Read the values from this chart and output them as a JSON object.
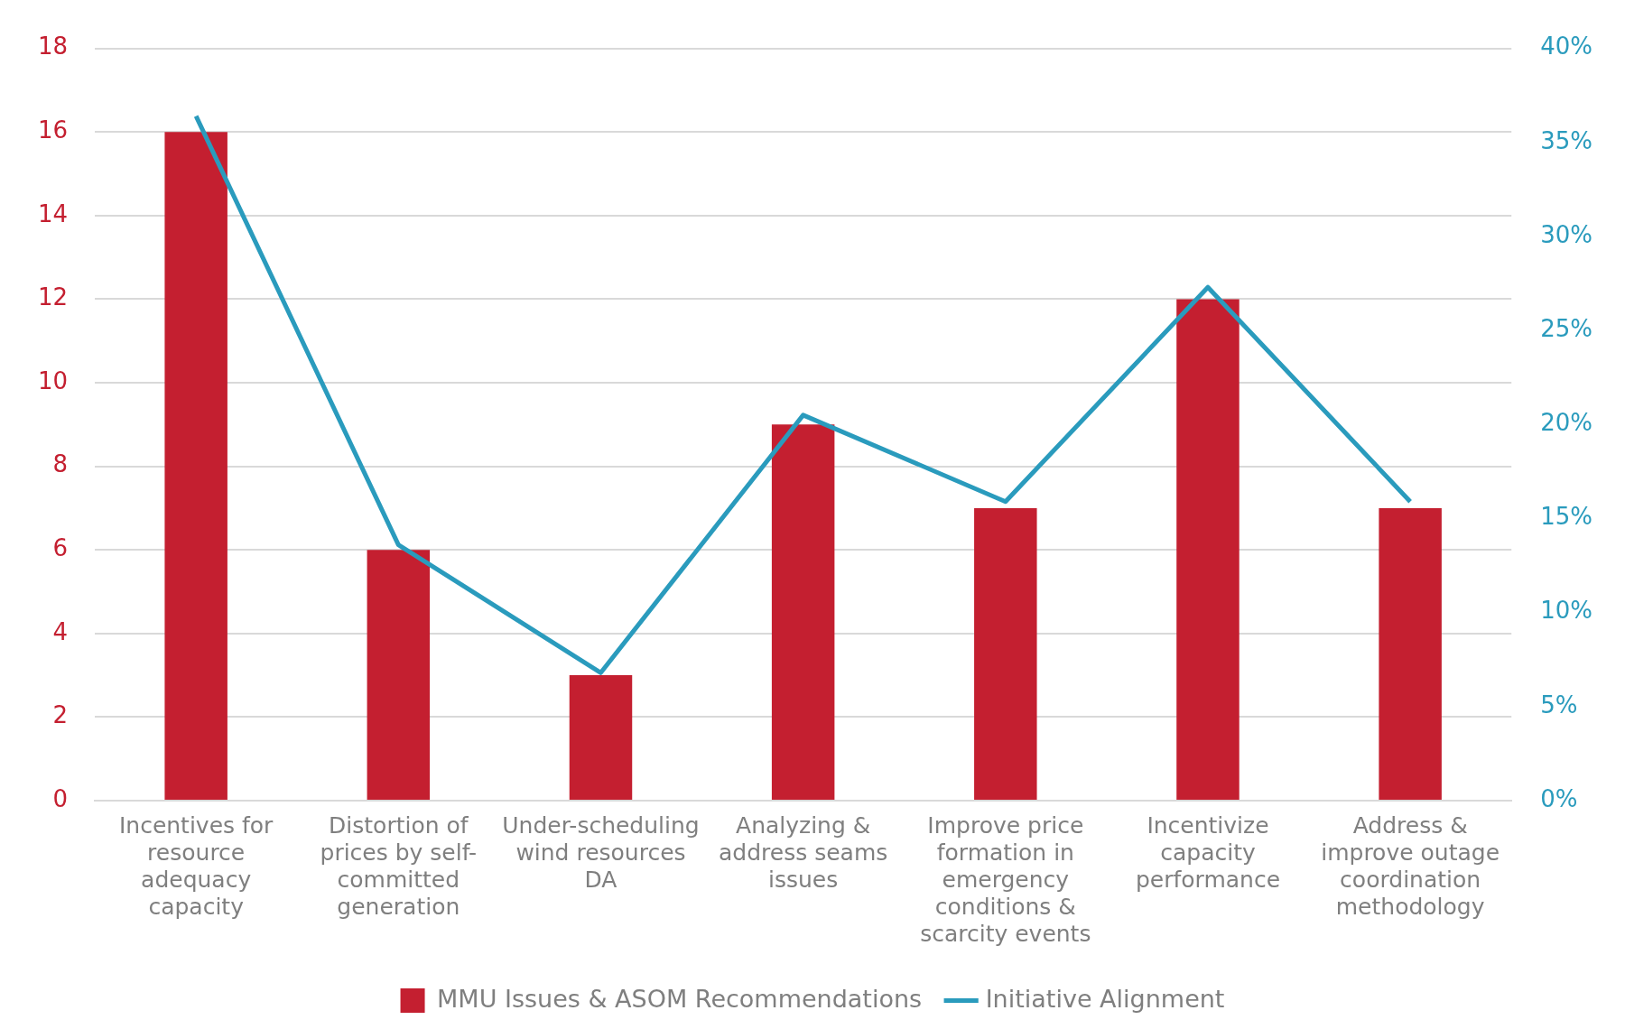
{
  "chart_data": {
    "type": "bar",
    "categories": [
      "Incentives for resource adequacy capacity",
      "Distortion of prices by self-committed generation",
      "Under-scheduling wind resources DA",
      "Analyzing & address seams issues",
      "Improve price formation in emergency conditions & scarcity events",
      "Incentivize capacity performance",
      "Address & improve outage coordination methodology"
    ],
    "series": [
      {
        "name": "MMU Issues & ASOM Recommendations",
        "color": "#c41f30",
        "values": [
          16,
          6,
          3,
          9,
          7,
          12,
          7
        ]
      },
      {
        "name": "Initiative Alignment",
        "type": "line",
        "axis": "y2",
        "color": "#2a9bbd",
        "values": [
          36.4,
          13.6,
          6.8,
          20.5,
          15.9,
          27.3,
          15.9
        ]
      }
    ],
    "ylim": [
      0,
      18
    ],
    "yticks": [
      0,
      2,
      4,
      6,
      8,
      10,
      12,
      14,
      16,
      18
    ],
    "y2lim": [
      0,
      40
    ],
    "y2ticks": [
      {
        "value": 0,
        "label": "0%"
      },
      {
        "value": 5,
        "label": "5%"
      },
      {
        "value": 10,
        "label": "10%"
      },
      {
        "value": 15,
        "label": "15%"
      },
      {
        "value": 20,
        "label": "20%"
      },
      {
        "value": 25,
        "label": "25%"
      },
      {
        "value": 30,
        "label": "30%"
      },
      {
        "value": 35,
        "label": "35%"
      },
      {
        "value": 40,
        "label": "40%"
      }
    ],
    "grid": "y",
    "legend": "bottom",
    "marker": "none",
    "line_style": "solid"
  }
}
